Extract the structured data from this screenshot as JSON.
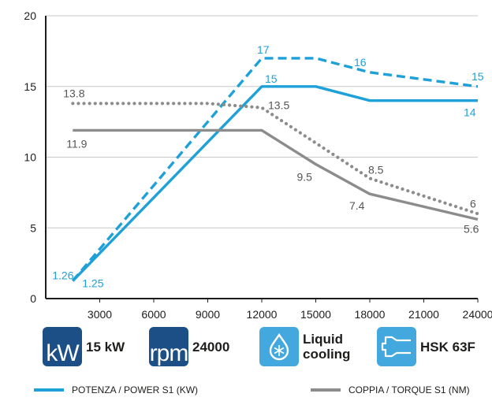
{
  "chart_data": {
    "type": "line",
    "x_ticks": [
      3000,
      6000,
      9000,
      12000,
      15000,
      18000,
      21000,
      24000
    ],
    "y_ticks": [
      0,
      5,
      10,
      15,
      20
    ],
    "xlim": [
      0,
      24000
    ],
    "ylim": [
      0,
      20
    ],
    "grid": "horizontal",
    "series": [
      {
        "style": "solid",
        "color": "#1ea0d8",
        "points": [
          [
            1500,
            1.25
          ],
          [
            12000,
            15
          ],
          [
            15000,
            15
          ],
          [
            18000,
            14
          ],
          [
            24000,
            14
          ]
        ],
        "labels": [
          {
            "x": 1500,
            "y": 1.25,
            "text": "1.25"
          },
          {
            "x": 12000,
            "y": 15,
            "text": "15"
          },
          {
            "x": 24000,
            "y": 14,
            "text": "14"
          }
        ]
      },
      {
        "style": "dashed",
        "color": "#1ea0d8",
        "points": [
          [
            1500,
            1.26
          ],
          [
            12000,
            17
          ],
          [
            15000,
            17
          ],
          [
            18000,
            16
          ],
          [
            24000,
            15
          ]
        ],
        "labels": [
          {
            "x": 1500,
            "y": 1.26,
            "text": "1.26"
          },
          {
            "x": 12000,
            "y": 17,
            "text": "17"
          },
          {
            "x": 18000,
            "y": 16,
            "text": "16"
          },
          {
            "x": 24000,
            "y": 15,
            "text": "15"
          }
        ]
      },
      {
        "style": "solid",
        "color": "#8c8c8c",
        "points": [
          [
            1500,
            11.9
          ],
          [
            12000,
            11.9
          ],
          [
            15000,
            9.5
          ],
          [
            18000,
            7.4
          ],
          [
            24000,
            5.6
          ]
        ],
        "labels": [
          {
            "x": 1500,
            "y": 11.9,
            "text": "11.9"
          },
          {
            "x": 15000,
            "y": 9.5,
            "text": "9.5"
          },
          {
            "x": 18000,
            "y": 7.4,
            "text": "7.4"
          },
          {
            "x": 24000,
            "y": 5.6,
            "text": "5.6"
          }
        ]
      },
      {
        "style": "dotted",
        "color": "#8c8c8c",
        "points": [
          [
            1500,
            13.8
          ],
          [
            9000,
            13.8
          ],
          [
            12000,
            13.5
          ],
          [
            15000,
            11.0
          ],
          [
            18000,
            8.5
          ],
          [
            24000,
            6.0
          ]
        ],
        "labels": [
          {
            "x": 1500,
            "y": 13.8,
            "text": "13.8"
          },
          {
            "x": 12000,
            "y": 13.5,
            "text": "13.5"
          },
          {
            "x": 18000,
            "y": 8.5,
            "text": "8.5"
          },
          {
            "x": 24000,
            "y": 6,
            "text": "6"
          }
        ]
      }
    ],
    "legend": [
      {
        "text": "POTENZA / POWER S1 (KW)",
        "color": "#1ea0d8"
      },
      {
        "text": "COPPIA / TORQUE S1 (NM)",
        "color": "#8c8c8c"
      }
    ]
  },
  "badges": {
    "power": {
      "icon": "kW",
      "icon_name": "kw-icon",
      "label": "15 kW"
    },
    "speed": {
      "icon": "rpm",
      "icon_name": "rpm-icon",
      "label": "24000"
    },
    "cooling": {
      "icon_name": "snowflake-drop-icon",
      "label_line1": "Liquid",
      "label_line2": "cooling"
    },
    "spindle": {
      "icon_name": "hsk-taper-icon",
      "label": "HSK 63F"
    }
  },
  "colors": {
    "blue": "#1ea0d8",
    "grey": "#8c8c8c",
    "dark_blue": "#1c4f86",
    "light_blue": "#42a8dd"
  }
}
